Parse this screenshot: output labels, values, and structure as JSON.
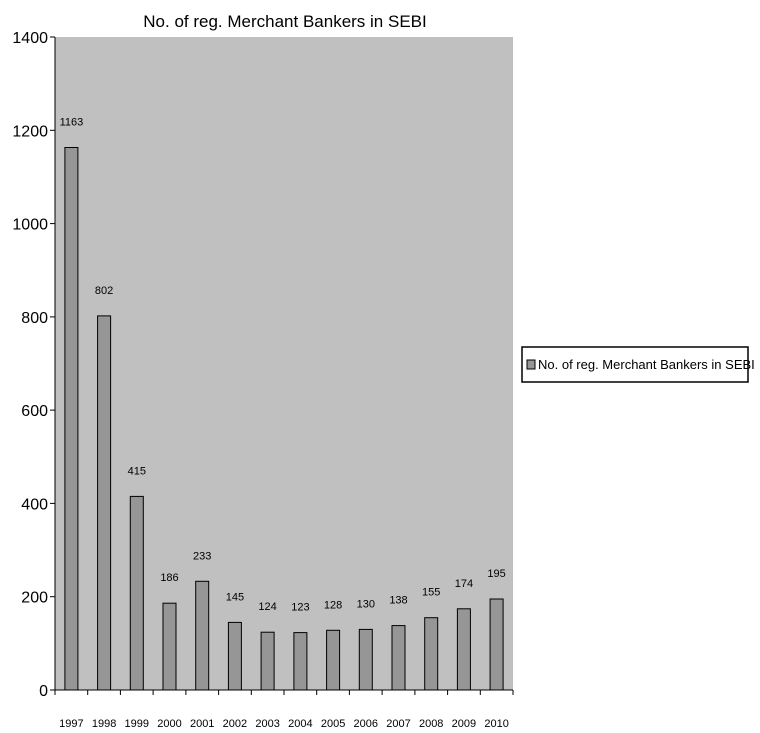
{
  "chart_data": {
    "type": "bar",
    "title": "No. of reg. Merchant Bankers in SEBI",
    "xlabel": "",
    "ylabel": "",
    "categories": [
      "1997",
      "1998",
      "1999",
      "2000",
      "2001",
      "2002",
      "2003",
      "2004",
      "2005",
      "2006",
      "2007",
      "2008",
      "2009",
      "2010"
    ],
    "series": [
      {
        "name": "No. of reg. Merchant Bankers in SEBI",
        "values": [
          1163,
          802,
          415,
          186,
          233,
          145,
          124,
          123,
          128,
          130,
          138,
          155,
          174,
          195
        ]
      }
    ],
    "ylim": [
      0,
      1400
    ],
    "yticks": [
      0,
      200,
      400,
      600,
      800,
      1000,
      1200,
      1400
    ],
    "grid": false,
    "data_labels": true,
    "legend_position": "right",
    "colors": {
      "plot_background": "#c0c0c0",
      "bar_fill": "#969696",
      "bar_stroke": "#000000"
    }
  }
}
